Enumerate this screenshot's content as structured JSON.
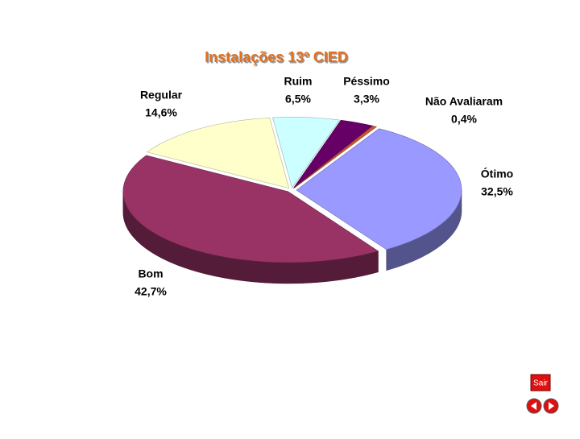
{
  "chart_data": {
    "type": "pie",
    "title": "Instalações 13º CIED",
    "categories": [
      "Ótimo",
      "Bom",
      "Regular",
      "Ruim",
      "Péssimo",
      "Não Avaliaram"
    ],
    "values": [
      32.5,
      42.7,
      14.6,
      6.5,
      3.3,
      0.4
    ],
    "value_labels": [
      "32,5%",
      "42,7%",
      "14,6%",
      "6,5%",
      "3,3%",
      "0,4%"
    ],
    "colors": [
      "#9999ff",
      "#993366",
      "#ffffcc",
      "#ccffff",
      "#660066",
      "#cc5533"
    ]
  },
  "navigation": {
    "exit": "Sair"
  }
}
